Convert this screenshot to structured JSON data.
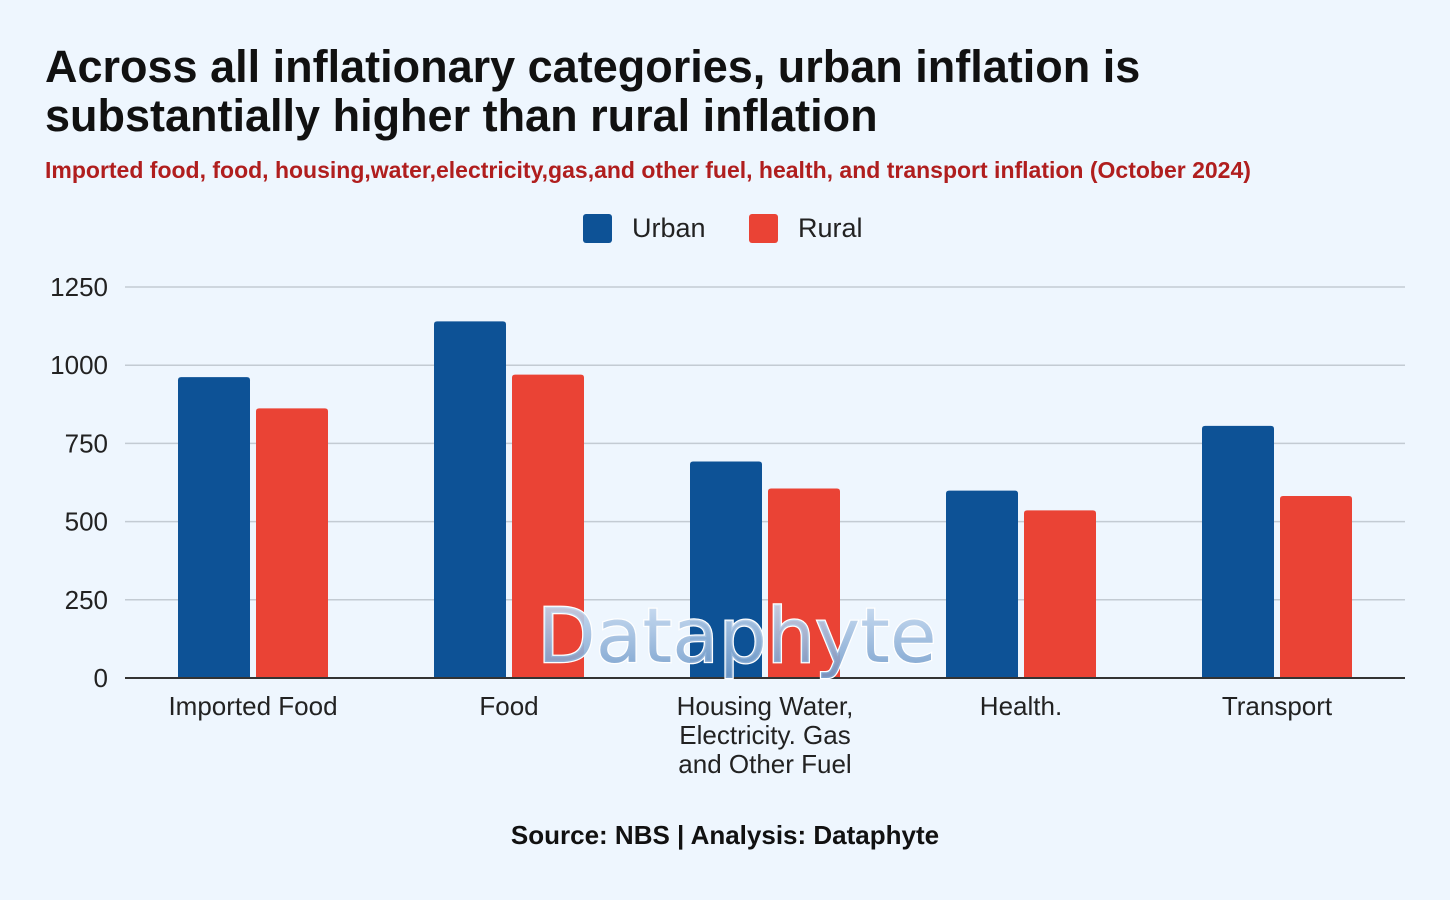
{
  "chart_data": {
    "type": "bar",
    "title": "Across all inflationary categories, urban inflation is substantially higher than rural inflation",
    "subtitle": "Imported food, food, housing,water,electricity,gas,and other fuel, health, and transport inflation (October 2024)",
    "categories": [
      [
        "Imported Food"
      ],
      [
        "Food"
      ],
      [
        "Housing Water,",
        "Electricity. Gas",
        "and Other  Fuel"
      ],
      [
        "Health."
      ],
      [
        "Transport"
      ]
    ],
    "series": [
      {
        "name": "Urban",
        "color": "#0d5296",
        "values": [
          962,
          1140,
          692,
          599,
          806
        ]
      },
      {
        "name": "Rural",
        "color": "#ea4335",
        "values": [
          862,
          970,
          606,
          536,
          582
        ]
      }
    ],
    "y_ticks": [
      0,
      250,
      500,
      750,
      1000,
      1250
    ],
    "ylim": [
      0,
      1250
    ],
    "grid": true,
    "legend_position": "top-center",
    "watermark": "Dataphyte",
    "source": "Source: NBS | Analysis: Dataphyte"
  }
}
